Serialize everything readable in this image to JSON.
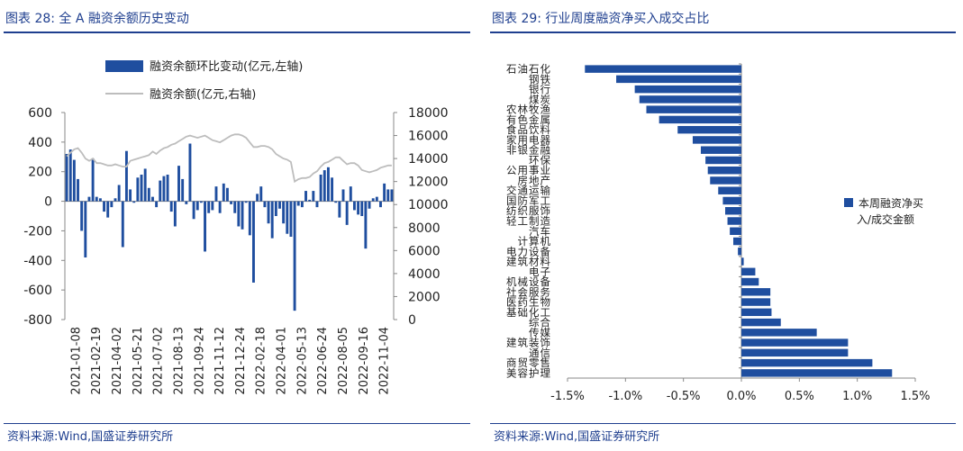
{
  "left": {
    "title": "图表 28:  全 A 融资余额历史变动",
    "source": "资料来源:Wind,国盛证券研究所"
  },
  "right": {
    "title": "图表 29:  行业周度融资净买入成交占比",
    "source": "资料来源:Wind,国盛证券研究所"
  },
  "colors": {
    "bar": "#1f4e9f",
    "line": "#bdbdbd",
    "accent": "#1f3f8f"
  },
  "chart_data": [
    {
      "type": "bar+line",
      "title": "",
      "legend": [
        "融资余额环比变动(亿元,左轴)",
        "融资余额(亿元,右轴)"
      ],
      "legend_position": "top",
      "ylim_left": [
        -800,
        600
      ],
      "yticks_left": [
        "600",
        "400",
        "200",
        "0",
        "-200",
        "-400",
        "-600",
        "-800"
      ],
      "ylim_right": [
        0,
        18000
      ],
      "yticks_right": [
        "18000",
        "16000",
        "14000",
        "12000",
        "10000",
        "8000",
        "6000",
        "4000",
        "2000",
        "0"
      ],
      "x_tick_labels": [
        "2021-01-08",
        "2021-02-19",
        "2021-04-02",
        "2021-05-21",
        "2021-07-02",
        "2021-08-13",
        "2021-09-24",
        "2021-11-12",
        "2021-12-24",
        "2022-02-18",
        "2022-04-01",
        "2022-05-13",
        "2022-06-24",
        "2022-08-05",
        "2022-09-16",
        "2022-11-04"
      ],
      "bar_series": {
        "name": "融资余额环比变动(亿元,左轴)",
        "values": [
          320,
          350,
          280,
          150,
          -200,
          -380,
          30,
          290,
          30,
          20,
          -70,
          -110,
          -40,
          20,
          110,
          -310,
          340,
          80,
          -10,
          160,
          180,
          220,
          90,
          30,
          -40,
          140,
          170,
          180,
          -70,
          -170,
          240,
          150,
          -20,
          390,
          -120,
          -60,
          -10,
          -340,
          -80,
          -60,
          100,
          -80,
          120,
          90,
          -20,
          -80,
          -170,
          -190,
          -10,
          -230,
          -550,
          50,
          100,
          -40,
          -150,
          -250,
          -100,
          -50,
          -150,
          -220,
          -240,
          -740,
          -30,
          -40,
          70,
          10,
          70,
          -40,
          180,
          210,
          230,
          160,
          -10,
          -110,
          80,
          -160,
          100,
          -60,
          -90,
          -100,
          -320,
          -50,
          20,
          30,
          -40,
          120,
          80,
          80
        ]
      },
      "line_series": {
        "name": "融资余额(亿元,右轴)",
        "values": [
          14200,
          14500,
          14800,
          14900,
          14500,
          14000,
          13800,
          14000,
          13600,
          13600,
          13500,
          13400,
          13400,
          13500,
          13400,
          13300,
          13300,
          13800,
          13900,
          14000,
          14100,
          14200,
          14300,
          14600,
          14400,
          14700,
          14900,
          15000,
          15200,
          15300,
          15500,
          15700,
          15900,
          16000,
          15900,
          15800,
          15900,
          16000,
          15800,
          15600,
          15500,
          15400,
          15600,
          15800,
          16000,
          16100,
          16100,
          16000,
          15800,
          15400,
          15000,
          15000,
          15100,
          15100,
          15000,
          14800,
          14400,
          14200,
          14000,
          13900,
          13700,
          12000,
          12200,
          12300,
          12300,
          12400,
          12700,
          12900,
          13300,
          13600,
          13700,
          13900,
          14100,
          14100,
          13800,
          13500,
          13600,
          13600,
          13400,
          13000,
          12900,
          12800,
          12900,
          13000,
          13200,
          13300,
          13400,
          13400
        ]
      }
    },
    {
      "type": "bar",
      "orientation": "horizontal",
      "title": "",
      "legend": [
        "本周融资净买入/成交金额"
      ],
      "legend_position": "right",
      "xlim": [
        -1.5,
        1.5
      ],
      "xticks": [
        "-1.5%",
        "-1.0%",
        "-0.5%",
        "0.0%",
        "0.5%",
        "1.0%",
        "1.5%"
      ],
      "categories": [
        "石油石化",
        "钢铁",
        "银行",
        "煤炭",
        "农林牧渔",
        "有色金属",
        "食品饮料",
        "家用电器",
        "非银金融",
        "环保",
        "公用事业",
        "房地产",
        "交通运输",
        "国防军工",
        "纺织服饰",
        "轻工制造",
        "汽车",
        "计算机",
        "电力设备",
        "建筑材料",
        "电子",
        "机械设备",
        "社会服务",
        "医药生物",
        "基础化工",
        "综合",
        "传媒",
        "建筑装饰",
        "通信",
        "商贸零售",
        "美容护理"
      ],
      "values": [
        -1.35,
        -1.08,
        -0.92,
        -0.88,
        -0.82,
        -0.71,
        -0.55,
        -0.42,
        -0.35,
        -0.31,
        -0.29,
        -0.27,
        -0.2,
        -0.16,
        -0.14,
        -0.12,
        -0.1,
        -0.07,
        -0.03,
        0.02,
        0.12,
        0.15,
        0.25,
        0.25,
        0.26,
        0.34,
        0.65,
        0.92,
        0.92,
        1.13,
        1.3
      ]
    }
  ]
}
